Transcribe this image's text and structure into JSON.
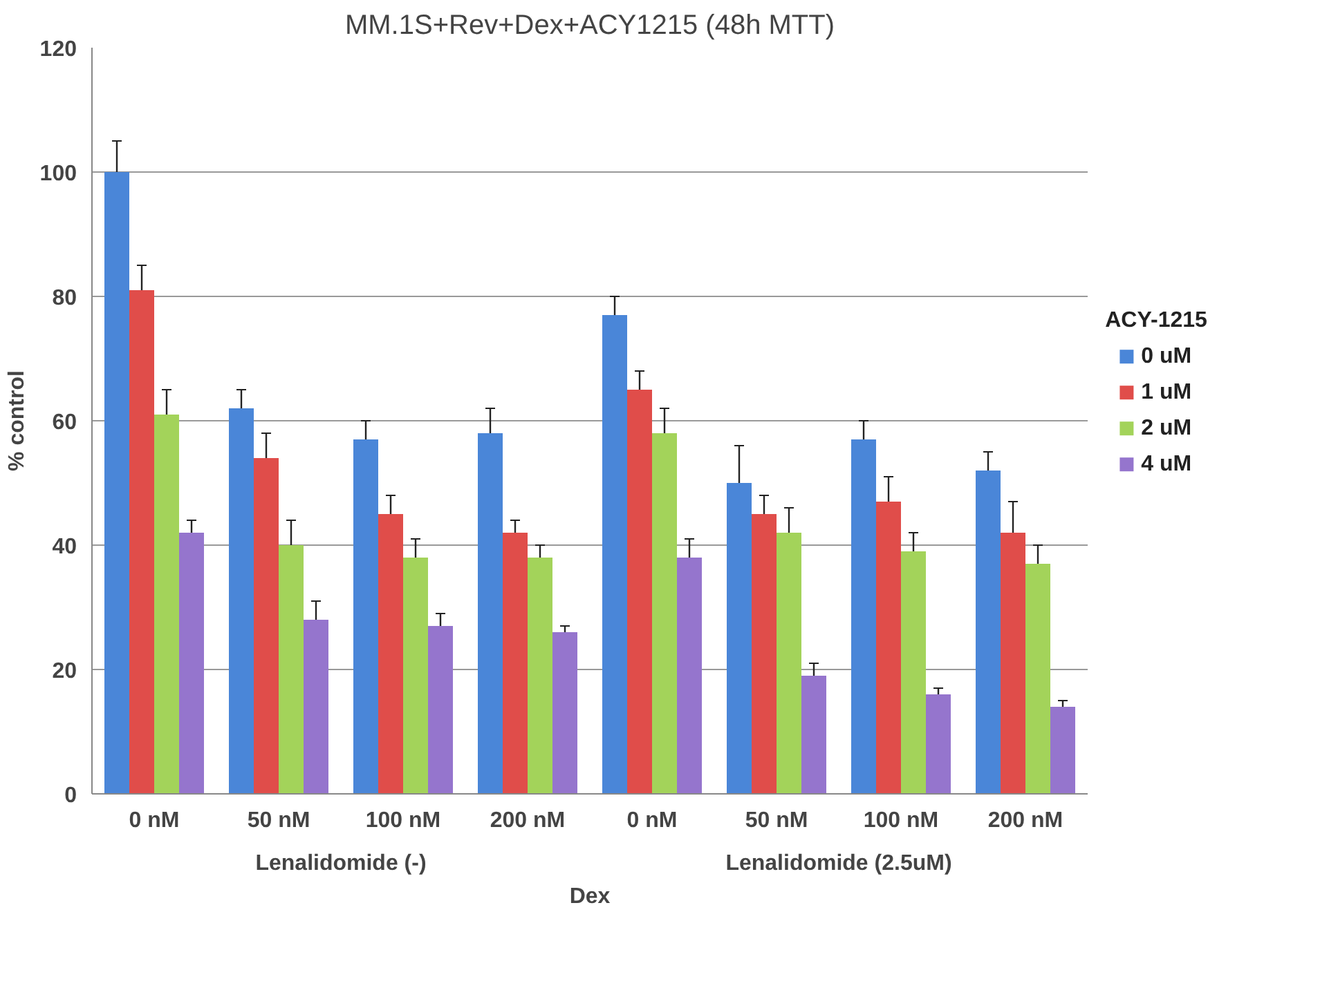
{
  "chart_data": {
    "type": "bar",
    "title": "MM.1S+Rev+Dex+ACY1215 (48h MTT)",
    "xlabel": "Dex",
    "ylabel": "% control",
    "legend_title": "ACY-1215",
    "categories": [
      "0 nM",
      "50 nM",
      "100 nM",
      "200 nM",
      "0 nM",
      "50 nM",
      "100 nM",
      "200 nM"
    ],
    "series": [
      {
        "name": "0 uM",
        "color": "#4a86d8",
        "values": [
          100,
          62,
          57,
          58,
          77,
          50,
          57,
          52
        ],
        "errors": [
          5,
          3,
          3,
          4,
          3,
          6,
          3,
          3
        ]
      },
      {
        "name": "1 uM",
        "color": "#e04d4a",
        "values": [
          81,
          54,
          45,
          42,
          65,
          45,
          47,
          42
        ],
        "errors": [
          4,
          4,
          3,
          2,
          3,
          3,
          4,
          5
        ]
      },
      {
        "name": "2 uM",
        "color": "#a3d35a",
        "values": [
          61,
          40,
          38,
          38,
          58,
          42,
          39,
          37
        ],
        "errors": [
          4,
          4,
          3,
          2,
          4,
          4,
          3,
          3
        ]
      },
      {
        "name": "4 uM",
        "color": "#9575cd",
        "values": [
          42,
          28,
          27,
          26,
          38,
          19,
          16,
          14
        ],
        "errors": [
          2,
          3,
          2,
          1,
          3,
          2,
          1,
          1
        ]
      }
    ],
    "ylim": [
      0,
      120
    ],
    "yticks": [
      0,
      20,
      40,
      60,
      80,
      100,
      120
    ],
    "grid": "y",
    "legend": "right",
    "annotations": [
      "Lenalidomide (-)",
      "Lenalidomide (2.5uM)"
    ]
  }
}
